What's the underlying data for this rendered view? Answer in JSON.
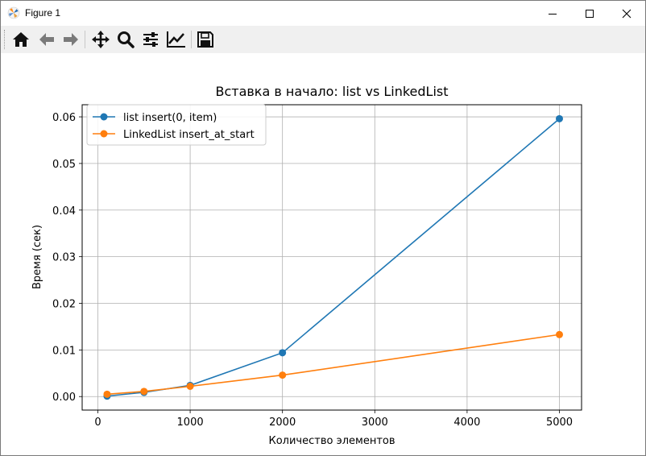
{
  "window": {
    "title": "Figure 1"
  },
  "toolbar": {
    "items": [
      {
        "name": "home-icon",
        "tooltip": "Home"
      },
      {
        "name": "back-arrow-icon",
        "tooltip": "Back"
      },
      {
        "name": "forward-arrow-icon",
        "tooltip": "Forward"
      },
      {
        "name": "pan-move-icon",
        "tooltip": "Pan"
      },
      {
        "name": "zoom-magnifier-icon",
        "tooltip": "Zoom"
      },
      {
        "name": "configure-subplots-icon",
        "tooltip": "Subplots"
      },
      {
        "name": "edit-axis-icon",
        "tooltip": "Customize"
      },
      {
        "name": "save-disk-icon",
        "tooltip": "Save"
      }
    ]
  },
  "colors": {
    "series1": "#1f77b4",
    "series2": "#ff7f0e",
    "grid": "#b0b0b0"
  },
  "chart_data": {
    "type": "line",
    "title": "Вставка в начало: list vs LinkedList",
    "xlabel": "Количество элементов",
    "ylabel": "Время (сек)",
    "xlim": [
      -170,
      5240
    ],
    "ylim": [
      -0.0029,
      0.0626
    ],
    "xticks": [
      0,
      1000,
      2000,
      3000,
      4000,
      5000
    ],
    "xtick_labels": [
      "0",
      "1000",
      "2000",
      "3000",
      "4000",
      "5000"
    ],
    "yticks": [
      0.0,
      0.01,
      0.02,
      0.03,
      0.04,
      0.05,
      0.06
    ],
    "ytick_labels": [
      "0.00",
      "0.01",
      "0.02",
      "0.03",
      "0.04",
      "0.05",
      "0.06"
    ],
    "grid": true,
    "legend_position": "upper-left",
    "x": [
      100,
      500,
      1000,
      2000,
      5000
    ],
    "series": [
      {
        "name": "list insert(0, item)",
        "color": "#1f77b4",
        "values": [
          0.0001,
          0.0009,
          0.0024,
          0.0094,
          0.0596
        ]
      },
      {
        "name": "LinkedList insert_at_start",
        "color": "#ff7f0e",
        "values": [
          0.0005,
          0.0011,
          0.0022,
          0.0046,
          0.0133
        ]
      }
    ]
  }
}
